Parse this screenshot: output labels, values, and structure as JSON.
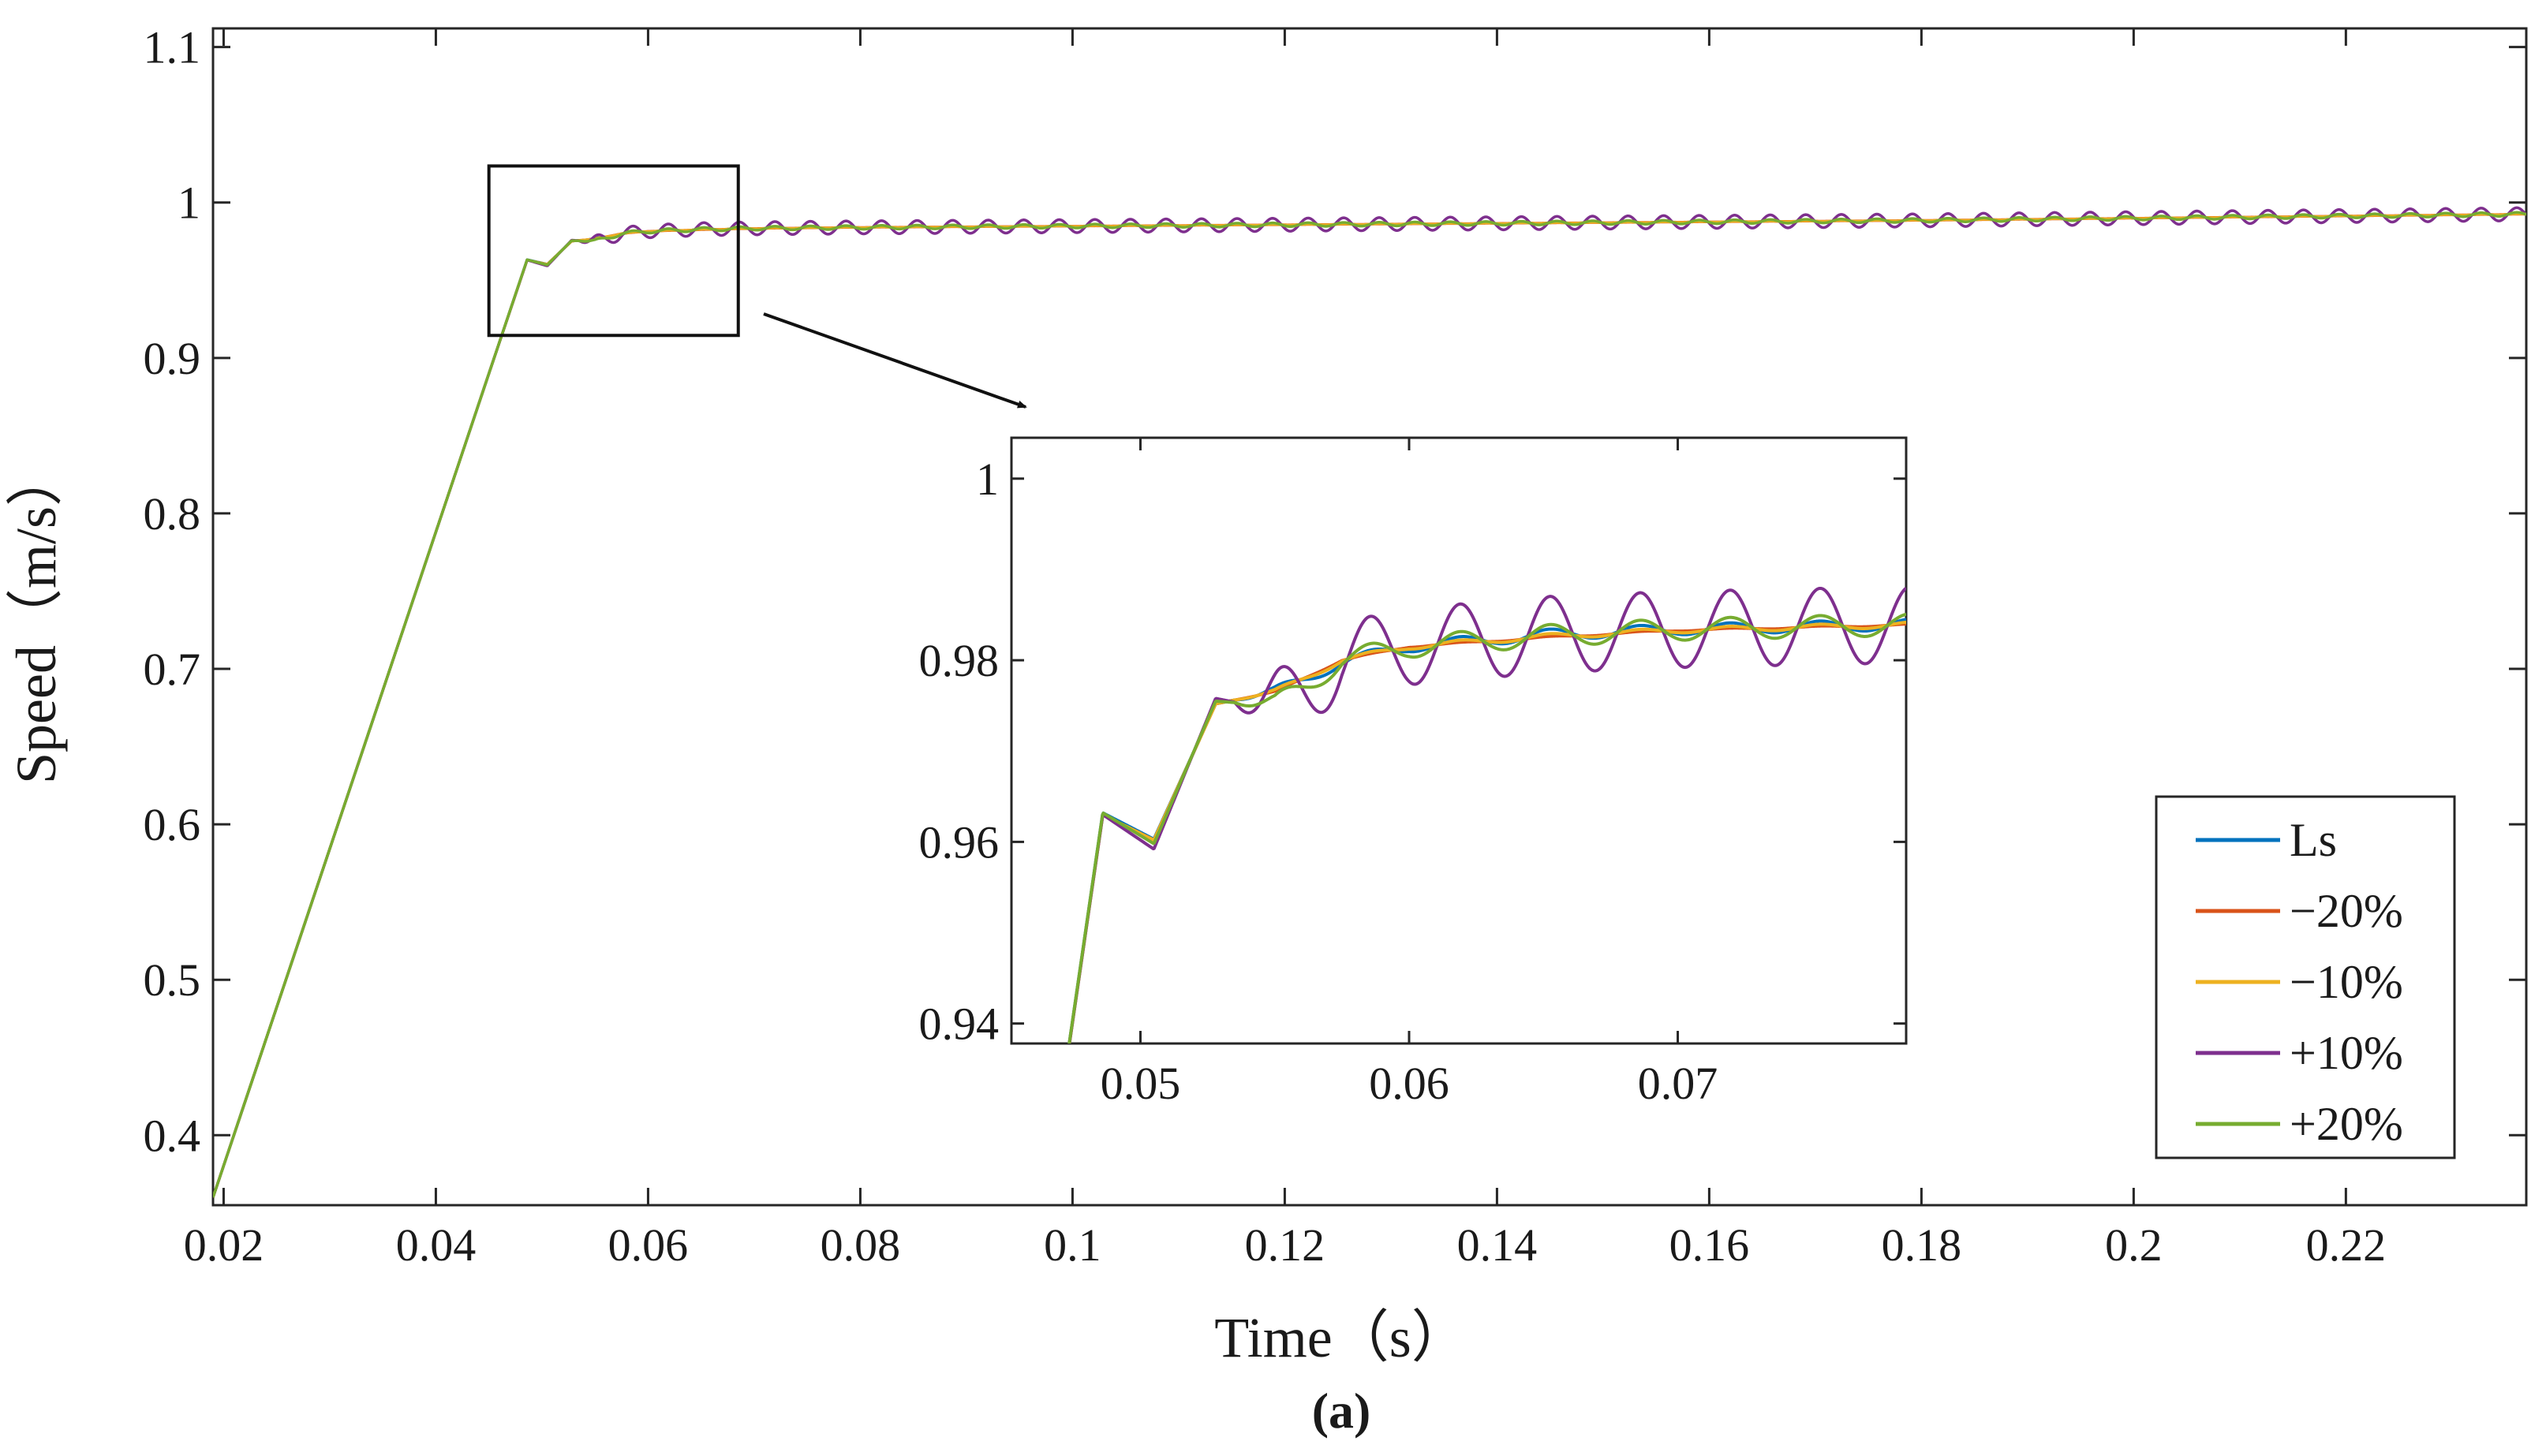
{
  "chart_data": {
    "type": "line",
    "xlabel": "Time（s）",
    "ylabel": "Speed（m/s）",
    "caption": "(a)",
    "xlim": [
      0.019,
      0.237
    ],
    "ylim": [
      0.355,
      1.112
    ],
    "xticks": [
      0.02,
      0.04,
      0.06,
      0.08,
      0.1,
      0.12,
      0.14,
      0.16,
      0.18,
      0.2,
      0.22
    ],
    "xtick_labels": [
      "0.02",
      "0.04",
      "0.06",
      "0.08",
      "0.1",
      "0.12",
      "0.14",
      "0.16",
      "0.18",
      "0.2",
      "0.22"
    ],
    "yticks": [
      0.4,
      0.5,
      0.6,
      0.7,
      0.8,
      0.9,
      1.0,
      1.1
    ],
    "ytick_labels": [
      "0.4",
      "0.5",
      "0.6",
      "0.7",
      "0.8",
      "0.9",
      "1",
      "1.1"
    ],
    "grid": false,
    "legend_position": "bottom-right",
    "series": [
      {
        "name": "Ls",
        "color": "#0072BD",
        "ripple": 0.0006,
        "points": [
          [
            0.019,
            0.36
          ],
          [
            0.045,
            0.89
          ],
          [
            0.0486,
            0.9632
          ],
          [
            0.0505,
            0.9603
          ],
          [
            0.0528,
            0.9752
          ],
          [
            0.055,
            0.9765
          ],
          [
            0.0575,
            0.9798
          ],
          [
            0.06,
            0.9815
          ],
          [
            0.065,
            0.9828
          ],
          [
            0.07,
            0.9834
          ],
          [
            0.08,
            0.984
          ],
          [
            0.1,
            0.9848
          ],
          [
            0.14,
            0.9866
          ],
          [
            0.18,
            0.9885
          ],
          [
            0.237,
            0.9925
          ]
        ]
      },
      {
        "name": "−20%",
        "color": "#D95319",
        "ripple": 0.0001,
        "points": [
          [
            0.019,
            0.36
          ],
          [
            0.045,
            0.89
          ],
          [
            0.0486,
            0.963
          ],
          [
            0.0505,
            0.9602
          ],
          [
            0.0528,
            0.9752
          ],
          [
            0.055,
            0.9765
          ],
          [
            0.0575,
            0.98
          ],
          [
            0.06,
            0.9815
          ],
          [
            0.065,
            0.9825
          ],
          [
            0.07,
            0.9833
          ],
          [
            0.08,
            0.984
          ],
          [
            0.1,
            0.9848
          ],
          [
            0.14,
            0.9866
          ],
          [
            0.18,
            0.9885
          ],
          [
            0.237,
            0.9925
          ]
        ]
      },
      {
        "name": "−10%",
        "color": "#EDB120",
        "ripple": 0.0003,
        "points": [
          [
            0.019,
            0.36
          ],
          [
            0.045,
            0.89
          ],
          [
            0.0486,
            0.963
          ],
          [
            0.0505,
            0.9602
          ],
          [
            0.0528,
            0.9752
          ],
          [
            0.055,
            0.9765
          ],
          [
            0.0575,
            0.98
          ],
          [
            0.06,
            0.9815
          ],
          [
            0.065,
            0.9826
          ],
          [
            0.07,
            0.9833
          ],
          [
            0.08,
            0.984
          ],
          [
            0.1,
            0.9848
          ],
          [
            0.14,
            0.9866
          ],
          [
            0.18,
            0.9885
          ],
          [
            0.237,
            0.9925
          ]
        ]
      },
      {
        "name": "+10%",
        "color": "#7E2F8E",
        "ripple": 0.0042,
        "points": [
          [
            0.019,
            0.36
          ],
          [
            0.045,
            0.89
          ],
          [
            0.0486,
            0.963
          ],
          [
            0.0505,
            0.9592
          ],
          [
            0.0528,
            0.9758
          ],
          [
            0.055,
            0.9745
          ],
          [
            0.0575,
            0.98
          ],
          [
            0.06,
            0.9815
          ],
          [
            0.065,
            0.9828
          ],
          [
            0.07,
            0.9834
          ],
          [
            0.08,
            0.984
          ],
          [
            0.1,
            0.9848
          ],
          [
            0.14,
            0.9866
          ],
          [
            0.18,
            0.9885
          ],
          [
            0.237,
            0.9925
          ]
        ]
      },
      {
        "name": "+20%",
        "color": "#77AC30",
        "ripple": 0.0012,
        "points": [
          [
            0.019,
            0.36
          ],
          [
            0.045,
            0.89
          ],
          [
            0.0486,
            0.9632
          ],
          [
            0.0505,
            0.9598
          ],
          [
            0.0528,
            0.9755
          ],
          [
            0.055,
            0.975
          ],
          [
            0.0575,
            0.98
          ],
          [
            0.06,
            0.9815
          ],
          [
            0.065,
            0.9827
          ],
          [
            0.07,
            0.9834
          ],
          [
            0.08,
            0.984
          ],
          [
            0.1,
            0.9848
          ],
          [
            0.14,
            0.9866
          ],
          [
            0.18,
            0.9885
          ],
          [
            0.237,
            0.9925
          ]
        ]
      }
    ],
    "ripple_period": 0.00335,
    "ripple_start": 0.0535,
    "ripple_phase_peak": 0.0552,
    "zoom_box": {
      "xlim": [
        0.045,
        0.0685
      ],
      "ylim": [
        0.9145,
        1.0235
      ]
    },
    "inset": {
      "xlim": [
        0.0452,
        0.0785
      ],
      "ylim": [
        0.9378,
        1.0045
      ],
      "xticks": [
        0.05,
        0.06,
        0.07
      ],
      "xtick_labels": [
        "0.05",
        "0.06",
        "0.07"
      ],
      "yticks": [
        0.94,
        0.96,
        0.98,
        1.0
      ],
      "ytick_labels": [
        "0.94",
        "0.96",
        "0.98",
        "1"
      ]
    }
  }
}
